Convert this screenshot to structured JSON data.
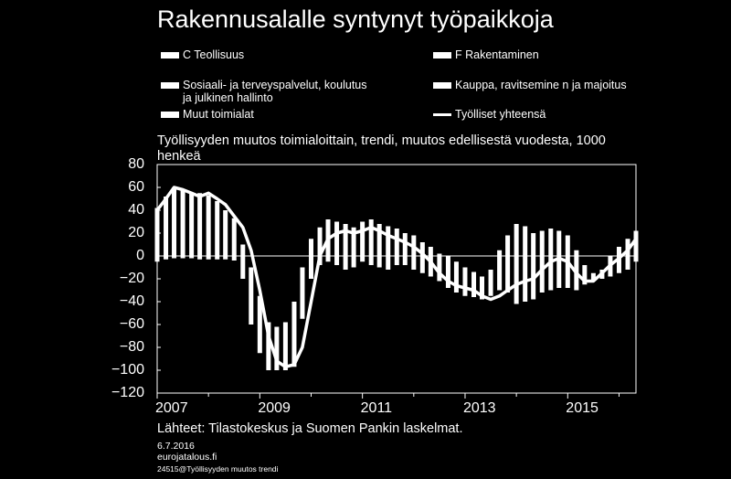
{
  "title": "Rakennusalalle syntynyt työpaikkoja",
  "chart_data": {
    "type": "bar",
    "subtitle": "Työllisyyden muutos toimialoittain, trendi, muutos edellisestä vuodesta, 1000 henkeä",
    "ylim": [
      -120,
      80
    ],
    "yticks": [
      "80",
      "60",
      "40",
      "20",
      "0",
      "−20",
      "−40",
      "−60",
      "−80",
      "−100",
      "−120"
    ],
    "xticks": [
      "2007",
      "2009",
      "2011",
      "2013",
      "2015"
    ],
    "xrange": [
      2007.0,
      2016.33
    ],
    "legend": [
      {
        "label": "C Teollisuus",
        "kind": "bar"
      },
      {
        "label": "F Rakentaminen",
        "kind": "bar"
      },
      {
        "label": "Sosiaali- ja terveyspalvelut, koulutus",
        "label2": "ja julkinen hallinto",
        "kind": "bar"
      },
      {
        "label": "Kauppa, ravitsemine n ja majoitus",
        "kind": "bar"
      },
      {
        "label": "Muut toimialat",
        "kind": "bar"
      },
      {
        "label": "Työlliset yhteensä",
        "kind": "line"
      }
    ],
    "bar_colors": "#ffffff",
    "line_color": "#ffffff",
    "bars": {
      "x": [
        2007.0,
        2007.17,
        2007.33,
        2007.5,
        2007.67,
        2007.83,
        2008.0,
        2008.17,
        2008.33,
        2008.5,
        2008.67,
        2008.83,
        2009.0,
        2009.17,
        2009.33,
        2009.5,
        2009.67,
        2009.83,
        2010.0,
        2010.17,
        2010.33,
        2010.5,
        2010.67,
        2010.83,
        2011.0,
        2011.17,
        2011.33,
        2011.5,
        2011.67,
        2011.83,
        2012.0,
        2012.17,
        2012.33,
        2012.5,
        2012.67,
        2012.83,
        2013.0,
        2013.17,
        2013.33,
        2013.5,
        2013.67,
        2013.83,
        2014.0,
        2014.17,
        2014.33,
        2014.5,
        2014.67,
        2014.83,
        2015.0,
        2015.17,
        2015.33,
        2015.5,
        2015.67,
        2015.83,
        2016.0,
        2016.17,
        2016.33
      ],
      "top": [
        42,
        52,
        60,
        58,
        55,
        55,
        53,
        48,
        40,
        33,
        10,
        -10,
        -35,
        -58,
        -62,
        -58,
        -40,
        -10,
        15,
        25,
        32,
        30,
        28,
        25,
        30,
        32,
        28,
        26,
        24,
        20,
        18,
        12,
        8,
        2,
        0,
        -5,
        -10,
        -14,
        -18,
        -12,
        5,
        18,
        28,
        26,
        20,
        22,
        24,
        22,
        18,
        5,
        -8,
        -15,
        -12,
        0,
        8,
        15,
        22
      ],
      "bottom": [
        -5,
        -3,
        -2,
        -2,
        -2,
        -3,
        -3,
        -3,
        -3,
        -4,
        -20,
        -60,
        -85,
        -100,
        -100,
        -100,
        -97,
        -55,
        -20,
        -8,
        -5,
        -8,
        -12,
        -10,
        -5,
        -8,
        -10,
        -12,
        -8,
        -8,
        -12,
        -15,
        -18,
        -22,
        -28,
        -32,
        -35,
        -36,
        -38,
        -35,
        -30,
        -32,
        -42,
        -40,
        -38,
        -32,
        -30,
        -28,
        -28,
        -30,
        -25,
        -22,
        -20,
        -18,
        -15,
        -12,
        -5
      ]
    },
    "total_line": {
      "x": [
        2007.0,
        2007.17,
        2007.33,
        2007.5,
        2007.67,
        2007.83,
        2008.0,
        2008.17,
        2008.33,
        2008.5,
        2008.67,
        2008.83,
        2009.0,
        2009.17,
        2009.33,
        2009.5,
        2009.67,
        2009.83,
        2010.0,
        2010.17,
        2010.33,
        2010.5,
        2010.67,
        2010.83,
        2011.0,
        2011.17,
        2011.33,
        2011.5,
        2011.67,
        2011.83,
        2012.0,
        2012.17,
        2012.33,
        2012.5,
        2012.67,
        2012.83,
        2013.0,
        2013.17,
        2013.33,
        2013.5,
        2013.67,
        2013.83,
        2014.0,
        2014.17,
        2014.33,
        2014.5,
        2014.67,
        2014.83,
        2015.0,
        2015.17,
        2015.33,
        2015.5,
        2015.67,
        2015.83,
        2016.0,
        2016.17,
        2016.33
      ],
      "y": [
        40,
        50,
        60,
        58,
        55,
        52,
        55,
        50,
        45,
        35,
        25,
        5,
        -30,
        -70,
        -92,
        -97,
        -95,
        -80,
        -40,
        0,
        15,
        20,
        22,
        20,
        22,
        25,
        22,
        18,
        15,
        12,
        8,
        2,
        -5,
        -15,
        -22,
        -26,
        -28,
        -30,
        -35,
        -38,
        -35,
        -30,
        -25,
        -22,
        -20,
        -12,
        -5,
        -2,
        -5,
        -15,
        -22,
        -22,
        -15,
        -8,
        -2,
        5,
        15
      ]
    },
    "source": "Lähteet: Tilastokeskus ja Suomen Pankin laskelmat."
  },
  "footer": {
    "date": "6.7.2016",
    "site": "eurojatalous.fi",
    "id": "24515@Työllisyyden muutos trendi"
  }
}
